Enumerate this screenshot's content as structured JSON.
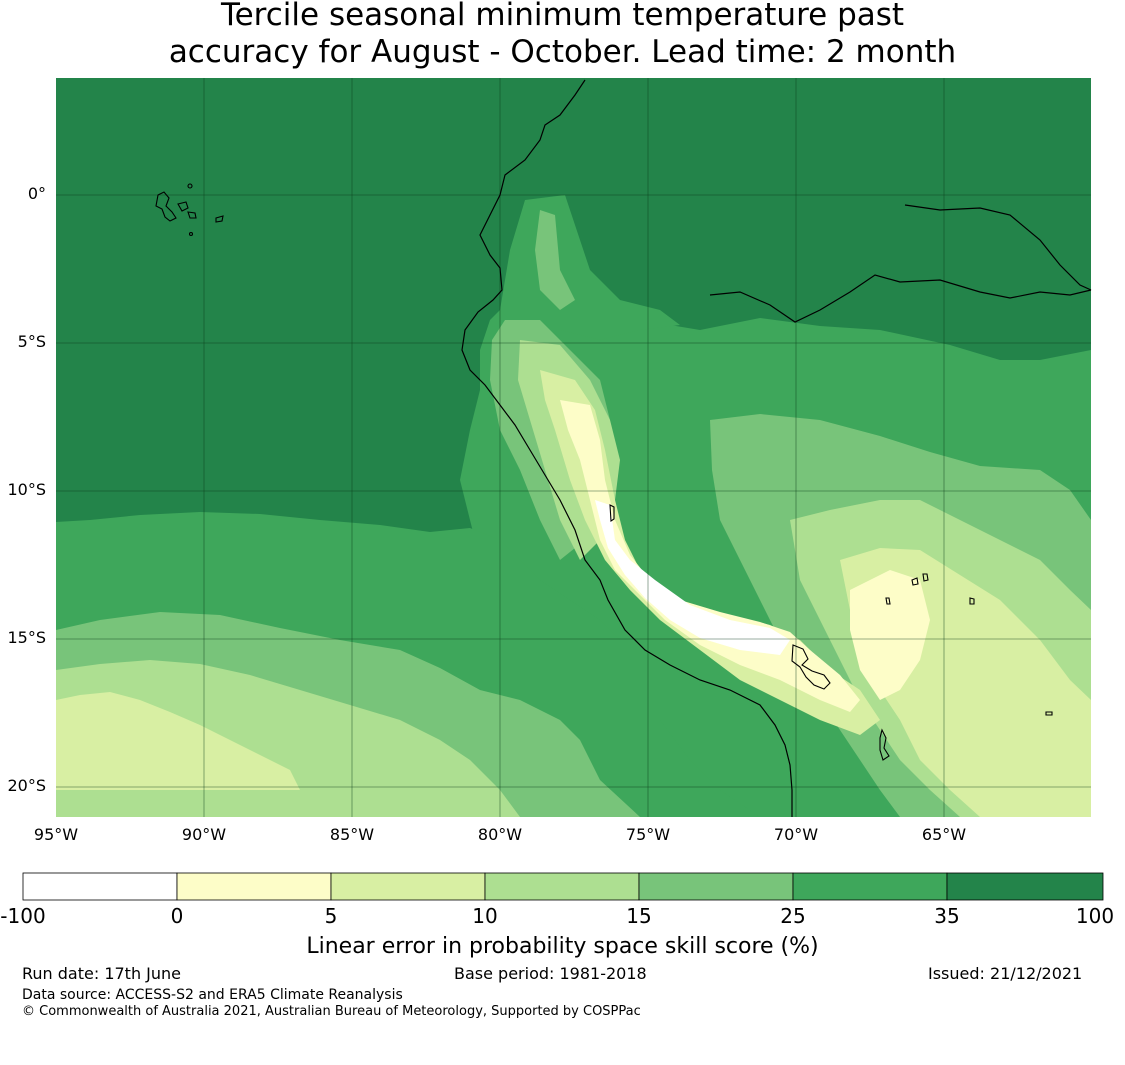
{
  "title": {
    "line1": "Tercile seasonal minimum temperature past",
    "line2": "accuracy for August - October. Lead time: 2 month"
  },
  "map": {
    "lat_labels": [
      "0°",
      "5°S",
      "10°S",
      "15°S",
      "20°S"
    ],
    "lon_labels": [
      "95°W",
      "90°W",
      "85°W",
      "80°W",
      "75°W",
      "70°W",
      "65°W"
    ],
    "extent": {
      "lon_min": -95,
      "lon_max": -60,
      "lat_min": -21,
      "lat_max": 4
    },
    "colors": {
      "c35_100": "#23844a",
      "c25_35": "#3ea75b",
      "c15_25": "#78c47a",
      "c10_15": "#addf91",
      "c5_10": "#d8efa3",
      "c0_5": "#fdfdc8",
      "cneg": "#ffffff"
    }
  },
  "colorbar": {
    "ticks": [
      "-100",
      "0",
      "5",
      "10",
      "15",
      "25",
      "35",
      "100"
    ],
    "colors": [
      "#ffffff",
      "#fdfdc8",
      "#d8efa3",
      "#addf91",
      "#78c47a",
      "#3ea75b",
      "#23844a"
    ],
    "label": "Linear error in probability space skill score (%)"
  },
  "footer": {
    "run_date": "Run date: 17th June",
    "base_period": "Base period: 1981-2018",
    "issued": "Issued: 21/12/2021",
    "data_source": "Data source: ACCESS-S2 and ERA5 Climate Reanalysis",
    "copyright": "© Commonwealth of Australia 2021, Australian Bureau of Meteorology, Supported by COSPPac"
  }
}
